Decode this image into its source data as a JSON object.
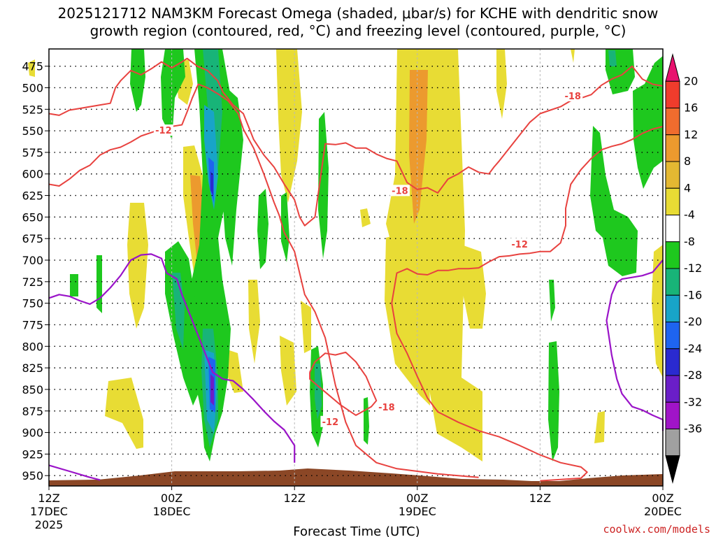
{
  "chart_data": {
    "type": "time-height cross-section",
    "title": [
      "2025121712 NAM3KM Forecast Omega (shaded, μbar/s) for KCHE with dendritic snow",
      "growth region (contoured, red, °C) and freezing level (contoured, purple, °C)"
    ],
    "xlabel": "Forecast Time (UTC)",
    "credit": "coolwx.com/models",
    "x_ticks": [
      {
        "hour": 0,
        "lines": [
          "12Z",
          "17DEC",
          "2025"
        ]
      },
      {
        "hour": 12,
        "lines": [
          "00Z",
          "18DEC"
        ]
      },
      {
        "hour": 24,
        "lines": [
          "12Z"
        ]
      },
      {
        "hour": 36,
        "lines": [
          "00Z",
          "19DEC"
        ]
      },
      {
        "hour": 48,
        "lines": [
          "12Z"
        ]
      },
      {
        "hour": 60,
        "lines": [
          "00Z",
          "20DEC"
        ]
      }
    ],
    "xlim": [
      0,
      60
    ],
    "y_ticks": [
      475,
      500,
      525,
      550,
      575,
      600,
      625,
      650,
      675,
      700,
      725,
      750,
      775,
      800,
      825,
      850,
      875,
      900,
      925,
      950
    ],
    "ylim": [
      455,
      962
    ],
    "colorbar": {
      "labels": [
        "20",
        "16",
        "12",
        "8",
        "4",
        "-4",
        "-8",
        "-12",
        "-16",
        "-20",
        "-24",
        "-28",
        "-32",
        "-36"
      ],
      "colors": [
        "#e8126e",
        "#f03c2c",
        "#f06c2e",
        "#ec9a2e",
        "#e4b832",
        "#e8dc34",
        "#ffffff",
        "#1ec81e",
        "#18b478",
        "#18a4c8",
        "#1e64f0",
        "#2a2ad0",
        "#6a1ec8",
        "#a014c8",
        "#a0a0a0",
        "#000000"
      ]
    },
    "contour_labels": [
      {
        "text": "-12",
        "t": 11.2,
        "p": 550
      },
      {
        "text": "-18",
        "t": 51.2,
        "p": 510
      },
      {
        "text": "-18",
        "t": 34.3,
        "p": 620
      },
      {
        "text": "-12",
        "t": 46.0,
        "p": 682
      },
      {
        "text": "-12",
        "t": 27.5,
        "p": 888
      },
      {
        "text": "-18",
        "t": 33.0,
        "p": 871
      }
    ],
    "dgz_contours": [
      [
        [
          0,
          612
        ],
        [
          1,
          614
        ],
        [
          2,
          606
        ],
        [
          3,
          596
        ],
        [
          4,
          590
        ],
        [
          5,
          578
        ],
        [
          6,
          572
        ],
        [
          7,
          569
        ],
        [
          8,
          563
        ],
        [
          9,
          556
        ],
        [
          10,
          552
        ],
        [
          11,
          548
        ],
        [
          12,
          545
        ],
        [
          13,
          543
        ],
        [
          13.5,
          528
        ],
        [
          14,
          512
        ],
        [
          14.6,
          496
        ],
        [
          15.5,
          500
        ],
        [
          16.5,
          507
        ],
        [
          17.5,
          515
        ],
        [
          18.5,
          530
        ],
        [
          19,
          548
        ],
        [
          20,
          570
        ],
        [
          21,
          600
        ],
        [
          22,
          633
        ],
        [
          22.5,
          648
        ],
        [
          23,
          668
        ],
        [
          24,
          690
        ],
        [
          24.5,
          715
        ],
        [
          25,
          740
        ],
        [
          26,
          760
        ],
        [
          27,
          790
        ],
        [
          28,
          845
        ],
        [
          29,
          888
        ],
        [
          30,
          915
        ],
        [
          32,
          935
        ],
        [
          34,
          942
        ],
        [
          36,
          945
        ],
        [
          38,
          948
        ],
        [
          40,
          950
        ],
        [
          42,
          952
        ]
      ],
      [
        [
          0,
          530
        ],
        [
          1,
          532
        ],
        [
          2,
          526
        ],
        [
          3,
          524
        ],
        [
          4,
          522
        ],
        [
          5,
          520
        ],
        [
          6,
          518
        ],
        [
          6.5,
          500
        ],
        [
          7,
          492
        ],
        [
          8,
          480
        ],
        [
          9,
          485
        ],
        [
          10,
          478
        ],
        [
          11,
          470
        ],
        [
          12,
          477
        ],
        [
          13,
          470
        ],
        [
          13.5,
          466
        ],
        [
          14.5,
          475
        ],
        [
          15.5,
          480
        ],
        [
          16.5,
          492
        ],
        [
          17,
          505
        ],
        [
          18,
          520
        ],
        [
          19,
          530
        ],
        [
          19.5,
          545
        ],
        [
          20,
          560
        ],
        [
          21,
          578
        ],
        [
          22,
          592
        ],
        [
          23,
          612
        ],
        [
          24,
          630
        ],
        [
          24.5,
          650
        ],
        [
          25,
          660
        ],
        [
          26,
          650
        ],
        [
          27,
          565
        ],
        [
          28,
          566
        ],
        [
          29,
          564
        ],
        [
          30,
          570
        ],
        [
          31,
          570
        ],
        [
          32,
          577
        ],
        [
          33,
          582
        ],
        [
          34,
          585
        ],
        [
          35,
          610
        ],
        [
          36,
          618
        ],
        [
          37,
          616
        ],
        [
          38,
          622
        ],
        [
          39,
          606
        ],
        [
          40,
          600
        ],
        [
          41,
          592
        ],
        [
          42,
          598
        ],
        [
          43,
          600
        ],
        [
          43.5,
          592
        ],
        [
          44,
          585
        ],
        [
          45,
          570
        ],
        [
          46,
          555
        ],
        [
          47,
          540
        ],
        [
          48,
          530
        ],
        [
          49,
          526
        ],
        [
          50,
          522
        ],
        [
          51,
          515
        ],
        [
          52,
          512
        ],
        [
          53,
          508
        ],
        [
          54,
          497
        ],
        [
          55,
          490
        ],
        [
          56,
          485
        ],
        [
          57,
          475
        ],
        [
          58,
          490
        ],
        [
          59,
          496
        ],
        [
          60,
          498
        ]
      ],
      [
        [
          60,
          545
        ],
        [
          59,
          548
        ],
        [
          58,
          553
        ],
        [
          57,
          560
        ],
        [
          56,
          565
        ],
        [
          55,
          568
        ],
        [
          54,
          572
        ],
        [
          53,
          582
        ],
        [
          52,
          595
        ],
        [
          51,
          612
        ],
        [
          50.5,
          640
        ],
        [
          50.5,
          660
        ],
        [
          50,
          680
        ],
        [
          49,
          690
        ],
        [
          48,
          690
        ],
        [
          47,
          692
        ],
        [
          46,
          693
        ],
        [
          45,
          695
        ],
        [
          44,
          696
        ],
        [
          43,
          702
        ],
        [
          42,
          709
        ],
        [
          41,
          710
        ],
        [
          40,
          710
        ],
        [
          39,
          712
        ],
        [
          38,
          712
        ],
        [
          37,
          717
        ],
        [
          36,
          716
        ],
        [
          35,
          710
        ],
        [
          34,
          715
        ],
        [
          33.5,
          750
        ],
        [
          34,
          785
        ],
        [
          35,
          808
        ],
        [
          36,
          835
        ],
        [
          37,
          860
        ],
        [
          38,
          876
        ],
        [
          40,
          888
        ],
        [
          42,
          898
        ],
        [
          44,
          905
        ],
        [
          46,
          915
        ],
        [
          48,
          926
        ],
        [
          50,
          935
        ],
        [
          52,
          940
        ],
        [
          52.6,
          946
        ],
        [
          52,
          953
        ],
        [
          48,
          956
        ]
      ],
      [
        [
          25.5,
          830
        ],
        [
          26,
          818
        ],
        [
          27,
          808
        ],
        [
          28,
          810
        ],
        [
          29,
          807
        ],
        [
          30,
          818
        ],
        [
          31,
          835
        ],
        [
          31.6,
          852
        ],
        [
          32,
          863
        ],
        [
          31.5,
          870
        ],
        [
          30,
          880
        ],
        [
          28.5,
          868
        ],
        [
          27.5,
          858
        ],
        [
          26.5,
          848
        ],
        [
          25.5,
          838
        ],
        [
          25.5,
          830
        ]
      ]
    ],
    "freezing_level_contours": [
      [
        [
          0,
          744
        ],
        [
          1,
          740
        ],
        [
          2,
          742
        ],
        [
          3,
          747
        ],
        [
          4,
          751
        ],
        [
          5,
          744
        ],
        [
          6,
          732
        ],
        [
          7,
          718
        ],
        [
          8,
          700
        ],
        [
          9,
          694
        ],
        [
          10,
          693
        ],
        [
          11,
          698
        ],
        [
          11.5,
          715
        ],
        [
          12.5,
          722
        ],
        [
          13,
          740
        ],
        [
          14,
          770
        ],
        [
          15,
          800
        ],
        [
          16,
          830
        ],
        [
          17,
          838
        ],
        [
          18,
          840
        ],
        [
          19,
          850
        ],
        [
          20,
          862
        ],
        [
          21,
          875
        ],
        [
          22,
          887
        ],
        [
          23,
          897
        ],
        [
          24,
          915
        ],
        [
          24,
          935
        ]
      ],
      [
        [
          0,
          938
        ],
        [
          2,
          945
        ],
        [
          4,
          952
        ],
        [
          5,
          955
        ]
      ],
      [
        [
          60,
          700
        ],
        [
          59,
          714
        ],
        [
          58,
          718
        ],
        [
          57,
          720
        ],
        [
          56,
          722
        ],
        [
          55.5,
          726
        ],
        [
          55,
          740
        ],
        [
          54.5,
          770
        ],
        [
          55,
          810
        ],
        [
          55.5,
          838
        ],
        [
          56,
          855
        ],
        [
          57,
          870
        ],
        [
          58,
          874
        ],
        [
          59,
          880
        ],
        [
          60,
          885
        ],
        [
          60,
          898
        ]
      ]
    ]
  }
}
